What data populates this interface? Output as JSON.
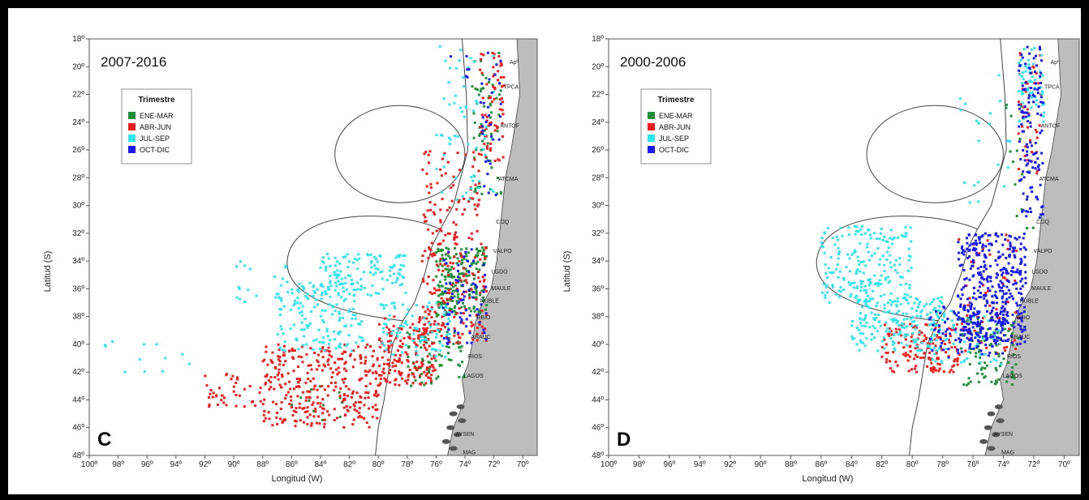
{
  "chart_data": [
    {
      "type": "scatter",
      "panel_letter": "C",
      "period": "2007-2016",
      "xlabel": "Longitud (W)",
      "ylabel": "Latitud (S)",
      "xlim": [
        100,
        69
      ],
      "ylim": [
        48,
        18
      ],
      "x_ticks": [
        "100º",
        "98º",
        "96º",
        "94º",
        "92º",
        "90º",
        "88º",
        "86º",
        "84º",
        "82º",
        "80º",
        "78º",
        "76º",
        "74º",
        "72º",
        "70º"
      ],
      "y_ticks": [
        "18º",
        "20º",
        "22º",
        "24º",
        "26º",
        "28º",
        "30º",
        "32º",
        "34º",
        "36º",
        "38º",
        "40º",
        "42º",
        "44º",
        "46º",
        "48º"
      ],
      "legend": {
        "title": "Trimestre",
        "placement": "upper-left",
        "entries": [
          {
            "label": "ENE-MAR",
            "color": "#1f8f3a"
          },
          {
            "label": "ABR-JUN",
            "color": "#ee1c1c"
          },
          {
            "label": "JUL-SEP",
            "color": "#2ee6ee"
          },
          {
            "label": "OCT-DIC",
            "color": "#1a1aee"
          }
        ]
      },
      "series": [
        {
          "name": "ENE-MAR",
          "color": "#1f8f3a",
          "clusters": [
            {
              "lon": [
                71.5,
                73.5
              ],
              "lat": [
                19,
                30
              ],
              "n": 60
            },
            {
              "lon": [
                72.5,
                76
              ],
              "lat": [
                33,
                38
              ],
              "n": 200
            },
            {
              "lon": [
                74,
                78
              ],
              "lat": [
                39,
                43
              ],
              "n": 70
            },
            {
              "lon": [
                82,
                86
              ],
              "lat": [
                43,
                45.5
              ],
              "n": 12
            }
          ]
        },
        {
          "name": "ABR-JUN",
          "color": "#ee1c1c",
          "clusters": [
            {
              "lon": [
                71.3,
                73
              ],
              "lat": [
                19,
                27
              ],
              "n": 70
            },
            {
              "lon": [
                73,
                77
              ],
              "lat": [
                26,
                33
              ],
              "n": 80
            },
            {
              "lon": [
                72.5,
                77
              ],
              "lat": [
                32,
                40
              ],
              "n": 160
            },
            {
              "lon": [
                76,
                80
              ],
              "lat": [
                38,
                43
              ],
              "n": 180
            },
            {
              "lon": [
                80,
                88
              ],
              "lat": [
                40,
                46
              ],
              "n": 320
            },
            {
              "lon": [
                88,
                92
              ],
              "lat": [
                42,
                44.5
              ],
              "n": 40
            }
          ]
        },
        {
          "name": "JUL-SEP",
          "color": "#2ee6ee",
          "clusters": [
            {
              "lon": [
                72,
                76
              ],
              "lat": [
                18.5,
                30
              ],
              "n": 60
            },
            {
              "lon": [
                78,
                84
              ],
              "lat": [
                33.5,
                36.5
              ],
              "n": 120
            },
            {
              "lon": [
                81,
                87
              ],
              "lat": [
                35.5,
                40.5
              ],
              "n": 160
            },
            {
              "lon": [
                75,
                80
              ],
              "lat": [
                37,
                41
              ],
              "n": 90
            },
            {
              "lon": [
                86,
                90
              ],
              "lat": [
                34,
                37
              ],
              "n": 20
            },
            {
              "lon": [
                93,
                99
              ],
              "lat": [
                39,
                42
              ],
              "n": 12
            }
          ]
        },
        {
          "name": "OCT-DIC",
          "color": "#1a1aee",
          "clusters": [
            {
              "lon": [
                71.5,
                73
              ],
              "lat": [
                19,
                30
              ],
              "n": 30
            },
            {
              "lon": [
                72.5,
                75.5
              ],
              "lat": [
                33,
                40
              ],
              "n": 70
            },
            {
              "lon": [
                73.5,
                75
              ],
              "lat": [
                18.5,
                21
              ],
              "n": 6
            }
          ]
        }
      ]
    },
    {
      "type": "scatter",
      "panel_letter": "D",
      "period": "2000-2006",
      "xlabel": "Longitud (W)",
      "ylabel": "Latitud (S)",
      "xlim": [
        100,
        69
      ],
      "ylim": [
        48,
        18
      ],
      "x_ticks": [
        "100º",
        "98º",
        "96º",
        "94º",
        "92º",
        "90º",
        "88º",
        "86º",
        "84º",
        "82º",
        "80º",
        "78º",
        "76º",
        "74º",
        "72º",
        "70º"
      ],
      "y_ticks": [
        "18º",
        "20º",
        "22º",
        "24º",
        "26º",
        "28º",
        "30º",
        "32º",
        "34º",
        "36º",
        "38º",
        "40º",
        "42º",
        "44º",
        "46º",
        "48º"
      ],
      "legend": {
        "title": "Trimestre",
        "placement": "upper-left",
        "entries": [
          {
            "label": "ENE-MAR",
            "color": "#1f8f3a"
          },
          {
            "label": "ABR-JUN",
            "color": "#ee1c1c"
          },
          {
            "label": "JUL-SEP",
            "color": "#2ee6ee"
          },
          {
            "label": "OCT-DIC",
            "color": "#1a1aee"
          }
        ]
      },
      "series": [
        {
          "name": "ENE-MAR",
          "color": "#1f8f3a",
          "clusters": [
            {
              "lon": [
                73,
                77
              ],
              "lat": [
                38,
                43
              ],
              "n": 100
            },
            {
              "lon": [
                72,
                74
              ],
              "lat": [
                22,
                32
              ],
              "n": 15
            }
          ]
        },
        {
          "name": "ABR-JUN",
          "color": "#ee1c1c",
          "clusters": [
            {
              "lon": [
                71.5,
                73
              ],
              "lat": [
                19,
                28
              ],
              "n": 40
            },
            {
              "lon": [
                77,
                82
              ],
              "lat": [
                38.5,
                42
              ],
              "n": 150
            },
            {
              "lon": [
                73,
                77
              ],
              "lat": [
                32,
                41
              ],
              "n": 60
            }
          ]
        },
        {
          "name": "JUL-SEP",
          "color": "#2ee6ee",
          "clusters": [
            {
              "lon": [
                71.3,
                73
              ],
              "lat": [
                18.5,
                24
              ],
              "n": 60
            },
            {
              "lon": [
                80,
                86
              ],
              "lat": [
                31.5,
                37
              ],
              "n": 200
            },
            {
              "lon": [
                78,
                84
              ],
              "lat": [
                36.5,
                40.5
              ],
              "n": 180
            },
            {
              "lon": [
                74,
                79
              ],
              "lat": [
                37.5,
                41.5
              ],
              "n": 60
            },
            {
              "lon": [
                73,
                77
              ],
              "lat": [
                20,
                30
              ],
              "n": 20
            }
          ]
        },
        {
          "name": "OCT-DIC",
          "color": "#1a1aee",
          "clusters": [
            {
              "lon": [
                71.3,
                73
              ],
              "lat": [
                18.5,
                31
              ],
              "n": 120
            },
            {
              "lon": [
                72.5,
                77
              ],
              "lat": [
                32,
                40
              ],
              "n": 380
            },
            {
              "lon": [
                74,
                79
              ],
              "lat": [
                37,
                41
              ],
              "n": 100
            }
          ]
        }
      ]
    }
  ],
  "regions": [
    "Apº",
    "TPCA",
    "ANTOF",
    "ATCMA",
    "COQ",
    "VALPO",
    "LGDO",
    "MAULE",
    "ÑUBLE",
    "BBIO",
    "ARAUC",
    "RIOS",
    "LAGOS",
    "AYSEN",
    "MAG"
  ]
}
